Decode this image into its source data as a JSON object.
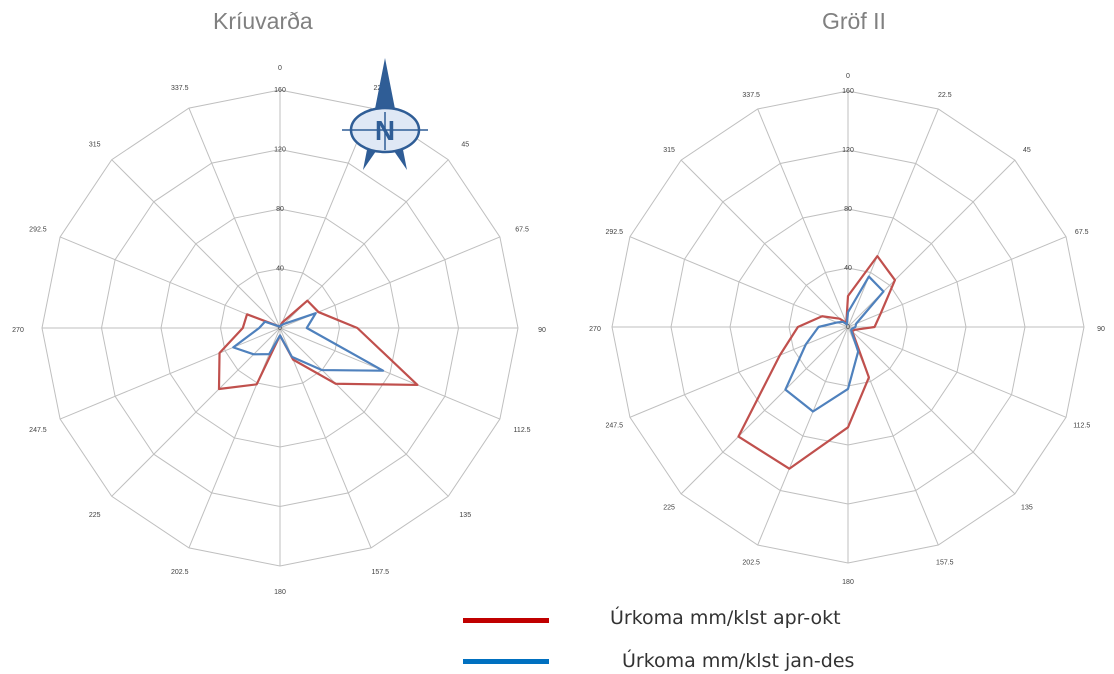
{
  "legend": {
    "apr_okt": "Úrkoma mm/klst apr-okt",
    "jan_des": "Úrkoma mm/klst jan-des"
  },
  "colors": {
    "red": "#c0504d",
    "blue": "#4f81bd",
    "legend_red": "#c00000",
    "legend_blue": "#0070c0"
  },
  "compass": {
    "letter": "N",
    "icon": "north-arrow-icon"
  },
  "chart_data": [
    {
      "type": "radar",
      "title": "Kríuvarða",
      "directions": [
        "0",
        "22.5",
        "45",
        "67.5",
        "90",
        "112.5",
        "135",
        "157.5",
        "180",
        "202.5",
        "225",
        "247.5",
        "270",
        "292.5",
        "315",
        "337.5"
      ],
      "radial_ticks": [
        "0",
        "40",
        "80",
        "120",
        "160"
      ],
      "rmax": 160,
      "series": [
        {
          "name": "Úrkoma mm/klst apr-okt",
          "values": [
            1,
            4,
            26,
            28,
            52,
            100,
            53,
            23,
            5,
            41,
            58,
            44,
            25,
            24,
            2,
            1
          ]
        },
        {
          "name": "Úrkoma mm/klst jan-des",
          "values": [
            1,
            2,
            4,
            26,
            18,
            75,
            40,
            21,
            5,
            19,
            25,
            34,
            14,
            11,
            2,
            1
          ]
        }
      ]
    },
    {
      "type": "radar",
      "title": "Gröf II",
      "directions": [
        "0",
        "22.5",
        "45",
        "67.5",
        "90",
        "112.5",
        "135",
        "157.5",
        "180",
        "202.5",
        "225",
        "247.5",
        "270",
        "292.5",
        "315",
        "337.5"
      ],
      "radial_ticks": [
        "0",
        "40",
        "80",
        "120",
        "160"
      ],
      "rmax": 160,
      "series": [
        {
          "name": "Úrkoma mm/klst apr-okt",
          "values": [
            21,
            52,
            45,
            24,
            18,
            5,
            4,
            37,
            68,
            104,
            105,
            50,
            34,
            19,
            8,
            3
          ]
        },
        {
          "name": "Úrkoma mm/klst jan-des",
          "values": [
            10,
            37,
            34,
            6,
            5,
            3,
            3,
            18,
            42,
            62,
            60,
            31,
            20,
            8,
            5,
            2
          ]
        }
      ]
    }
  ]
}
